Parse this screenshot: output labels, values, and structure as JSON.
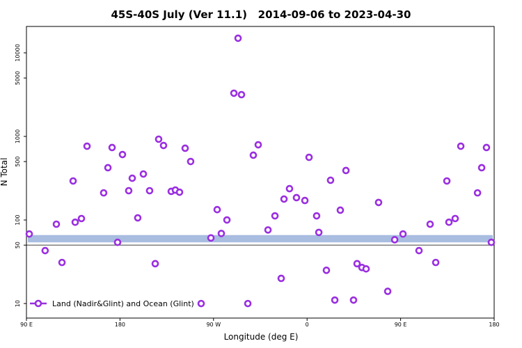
{
  "chart_data": {
    "type": "scatter",
    "title": "45S-40S July (Ver 11.1)   2014-09-06 to 2023-04-30",
    "x_label": "Longitude (deg E)",
    "y_label": "N Total",
    "log_y": true,
    "legend": "bottom-left",
    "xlim": [
      90,
      540
    ],
    "ylim": [
      6.7,
      20700
    ],
    "xticks": [
      {
        "value": 90,
        "label": "90 E"
      },
      180,
      {
        "value": 270,
        "label": "90 W"
      },
      {
        "value": 360,
        "label": "0"
      },
      {
        "value": 450,
        "label": "90 E"
      },
      {
        "value": 540,
        "label": "180"
      }
    ],
    "yticks": [
      10,
      50,
      100,
      500,
      1000,
      5000,
      10000
    ],
    "hline": 50,
    "band": {
      "ylim": [
        54,
        66
      ],
      "color": "#a8bde0"
    },
    "series": [
      {
        "name": "Land (Nadir&Glint) and Ocean (Glint)",
        "color": "#9a2ee0",
        "x": [
          92.7,
          108,
          118.8,
          124.2,
          134.9,
          136.9,
          142.9,
          148.3,
          164.3,
          168.4,
          172.4,
          177.7,
          182.4,
          188.4,
          191.8,
          197.1,
          202.5,
          208.5,
          213.9,
          217.2,
          221.9,
          229.3,
          233.3,
          237.3,
          242.7,
          248,
          258.1,
          267.5,
          273.5,
          277.5,
          282.9,
          289.6,
          293.6,
          296.9,
          303,
          308.3,
          313,
          322.4,
          329.1,
          335.1,
          337.8,
          343.1,
          349.8,
          357.9,
          361.9,
          369.2,
          371.3,
          378.6,
          382.6,
          386.7,
          392,
          397.4,
          404.7,
          408.1,
          412.8,
          416.8,
          428.8,
          437.6,
          444.3,
          452.3,
          467.7,
          478.4,
          483.8,
          494.5,
          496.5,
          502.5,
          507.9,
          524,
          528,
          532.6,
          537.3
        ],
        "values": [
          68,
          43,
          89,
          31,
          293,
          94,
          104,
          764,
          211,
          422,
          736,
          54,
          607,
          224,
          316,
          106,
          355,
          224,
          30,
          926,
          779,
          220,
          228,
          215,
          722,
          501,
          10,
          61,
          133,
          69,
          100,
          3290,
          14960,
          3160,
          10,
          596,
          794,
          76,
          112,
          20,
          178,
          237,
          185,
          171,
          562,
          112,
          71,
          25,
          299,
          11,
          131,
          391,
          11,
          30,
          27,
          26,
          162,
          14,
          58,
          68,
          43,
          89,
          31,
          293,
          94,
          104,
          764,
          211,
          422,
          736,
          54
        ]
      }
    ]
  }
}
